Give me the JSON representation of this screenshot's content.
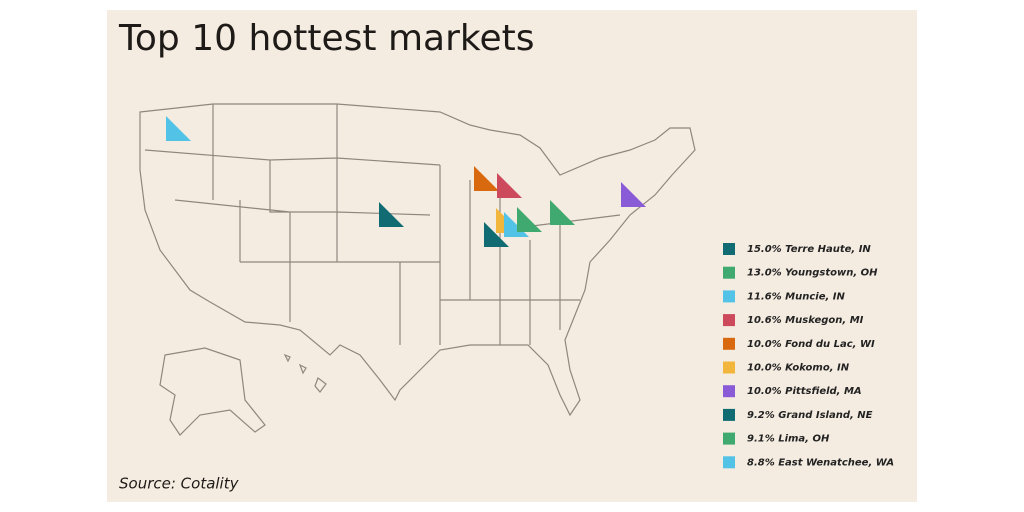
{
  "title": "Top 10 hottest markets",
  "legend": [
    {
      "label": "15.0% Terre Haute, IN",
      "color": "#106b72"
    },
    {
      "label": "13.0% Youngstown, OH",
      "color": "#3fa96f"
    },
    {
      "label": "11.6% Muncie, IN",
      "color": "#52c2e6"
    },
    {
      "label": "10.6% Muskegon, MI",
      "color": "#cc4a5c"
    },
    {
      "label": "10.0% Fond du Lac, WI",
      "color": "#d9690f"
    },
    {
      "label": "10.0% Kokomo, IN",
      "color": "#f2b63c"
    },
    {
      "label": "10.0% Pittsfield, MA",
      "color": "#8a5bd6"
    },
    {
      "label": "9.2% Grand Island, NE",
      "color": "#106b72"
    },
    {
      "label": "9.1% Lima, OH",
      "color": "#3fa96f"
    },
    {
      "label": "8.8% East Wenatchee, WA",
      "color": "#52c2e6"
    }
  ],
  "source": "Source: Cotality"
}
